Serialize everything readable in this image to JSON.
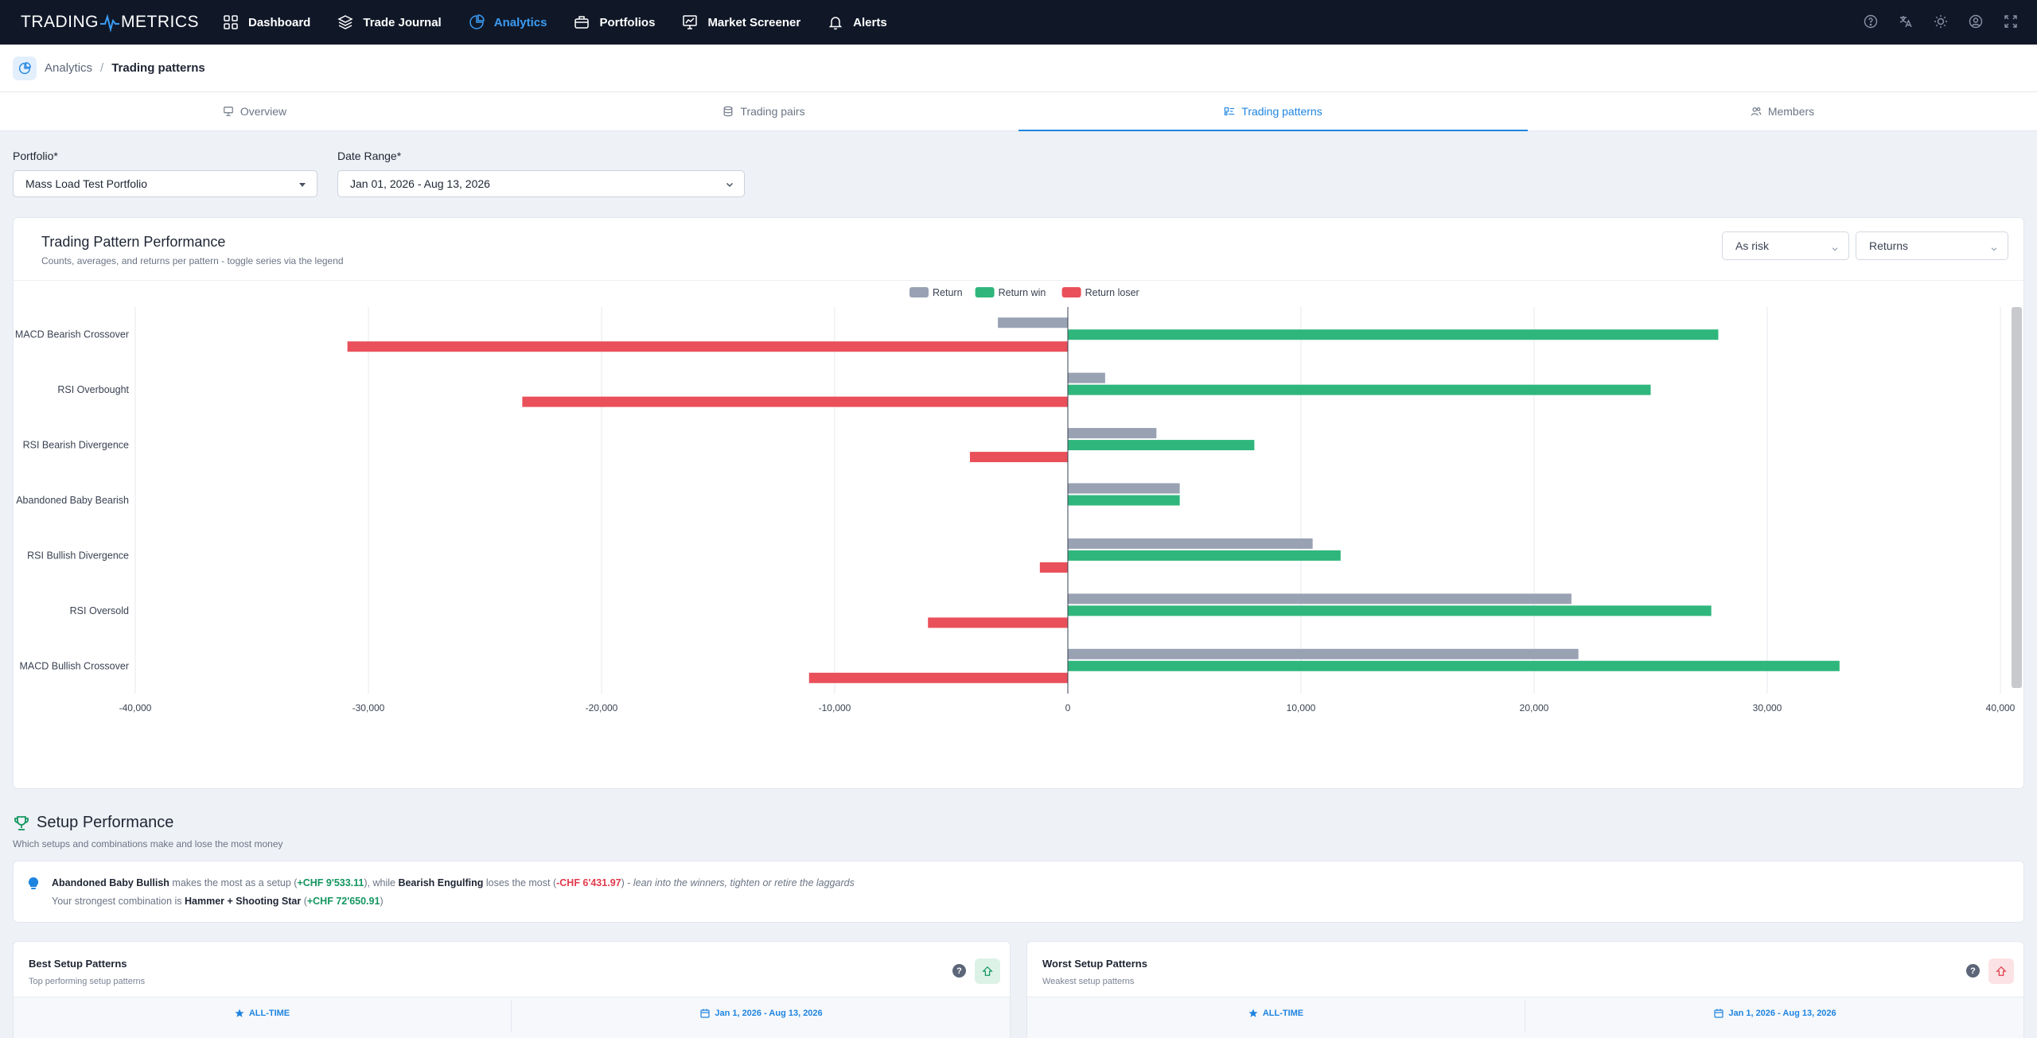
{
  "nav": {
    "logo_left": "TRADING",
    "logo_right": "METRICS",
    "items": [
      {
        "label": "Dashboard",
        "icon": "grid-icon"
      },
      {
        "label": "Trade Journal",
        "icon": "layers-icon"
      },
      {
        "label": "Analytics",
        "icon": "pie-chart-icon"
      },
      {
        "label": "Portfolios",
        "icon": "briefcase-icon"
      },
      {
        "label": "Market Screener",
        "icon": "monitor-chart-icon"
      },
      {
        "label": "Alerts",
        "icon": "bell-icon"
      }
    ],
    "active": "Analytics",
    "right_icons": [
      "help-icon",
      "translate-icon",
      "sun-icon",
      "user-icon",
      "fullscreen-icon"
    ]
  },
  "breadcrumb": {
    "parent": "Analytics",
    "separator": "/",
    "current": "Trading patterns"
  },
  "tabs": [
    {
      "label": "Overview",
      "icon": "presentation-icon"
    },
    {
      "label": "Trading pairs",
      "icon": "database-icon"
    },
    {
      "label": "Trading patterns",
      "icon": "pattern-icon",
      "active": true
    },
    {
      "label": "Members",
      "icon": "users-icon"
    }
  ],
  "filters": {
    "portfolio_label": "Portfolio*",
    "portfolio_value": "Mass Load Test Portfolio",
    "date_label": "Date Range*",
    "date_value": "Jan 01, 2026 - Aug 13, 2026"
  },
  "chart_card": {
    "title": "Trading Pattern Performance",
    "subtitle": "Counts, averages, and returns per pattern - toggle series via the legend",
    "select1": "As risk",
    "select2": "Returns"
  },
  "chart_data": {
    "type": "bar",
    "orientation": "horizontal",
    "categories": [
      "MACD Bearish Crossover",
      "RSI Overbought",
      "RSI Bearish Divergence",
      "Abandoned Baby Bearish",
      "RSI Bullish Divergence",
      "RSI Oversold",
      "MACD Bullish Crossover"
    ],
    "series": [
      {
        "name": "Return",
        "color": "#98a2b3",
        "values": [
          -3000,
          1600,
          3800,
          4800,
          10500,
          21600,
          21900
        ]
      },
      {
        "name": "Return win",
        "color": "#2fb67c",
        "values": [
          27900,
          25000,
          8000,
          4800,
          11700,
          27600,
          33100
        ]
      },
      {
        "name": "Return loser",
        "color": "#e9505a",
        "values": [
          -30900,
          -23400,
          -4200,
          0,
          -1200,
          -6000,
          -11100
        ]
      }
    ],
    "xlim": [
      -40000,
      40000
    ],
    "xticks": [
      "-40,000",
      "-30,000",
      "-20,000",
      "-10,000",
      "0",
      "10,000",
      "20,000",
      "30,000",
      "40,000"
    ],
    "legend_position": "top-center",
    "grid": true
  },
  "setup": {
    "title": "Setup Performance",
    "subtitle": "Which setups and combinations make and lose the most money",
    "line1": {
      "best_name": "Abandoned Baby Bullish",
      "t1": " makes the most as a setup (",
      "best_value": "+CHF 9'533.11",
      "t2": "), while ",
      "worst_name": "Bearish Engulfing",
      "t3": " loses the most (",
      "worst_value": "-CHF 6'431.97",
      "t4": ") - ",
      "advice": "lean into the winners, tighten or retire the laggards"
    },
    "line2": {
      "t1": "Your strongest combination is ",
      "combo": "Hammer + Shooting Star",
      "t2": " (",
      "value": "+CHF 72'650.91",
      "t3": ")"
    }
  },
  "best_card": {
    "title": "Best Setup Patterns",
    "subtitle": "Top performing setup patterns",
    "col1": "ALL-TIME",
    "col2": "Jan 1, 2026 - Aug 13, 2026",
    "help": "?"
  },
  "worst_card": {
    "title": "Worst Setup Patterns",
    "subtitle": "Weakest setup patterns",
    "col1": "ALL-TIME",
    "col2": "Jan 1, 2026 - Aug 13, 2026",
    "help": "?"
  }
}
